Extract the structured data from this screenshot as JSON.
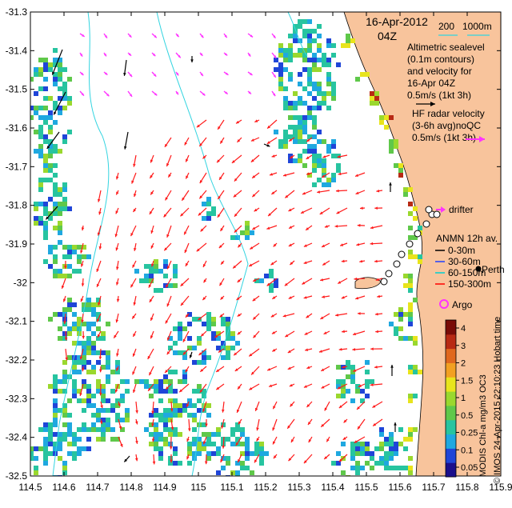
{
  "map": {
    "date_line1": "16-Apr-2012",
    "date_line2": "04Z",
    "bathy_legend": {
      "label_200": "200",
      "label_1000": "1000m"
    },
    "altimetry_text": [
      "Altimetric sealevel",
      "(0.1m contours)",
      "and velocity for",
      "16-Apr 04Z",
      "0.5m/s (1kt 3h)"
    ],
    "hf_radar_text": [
      "HF radar velocity",
      "(3-6h avg)noQC",
      "0.5m/s (1kt 3h)"
    ],
    "drifter_label": "drifter",
    "anmn_text": [
      "ANMN 12h av.",
      "0-30m",
      "30-60m",
      "60-150m",
      "150-300m"
    ],
    "city_label": "Perth",
    "argo_label": "Argo",
    "colorbar_ticks": [
      "4",
      "3",
      "2",
      "1.5",
      "1",
      "0.5",
      "0.25",
      "0.1",
      "0.05"
    ],
    "colorbar_title": "MODIS Chl-a mg/m3 OC3",
    "credit": "© IMOS 24-Apr-2015 22:10:23 Hobart time",
    "x_ticks": [
      "114.5",
      "114.6",
      "114.7",
      "114.8",
      "114.9",
      "115",
      "115.1",
      "115.2",
      "115.3",
      "115.4",
      "115.5",
      "115.6",
      "115.7",
      "115.8",
      "115.9"
    ],
    "y_ticks": [
      "-31.3",
      "-31.4",
      "-31.5",
      "-31.6",
      "-31.7",
      "-31.8",
      "-31.9",
      "-32",
      "-32.1",
      "-32.2",
      "-32.3",
      "-32.4",
      "-32.5"
    ],
    "extent": {
      "lon": [
        114.5,
        115.9
      ],
      "lat": [
        -32.5,
        -31.3
      ]
    },
    "colors": {
      "land": "#f8c49c",
      "bathy_contour": "#33d4e0",
      "hf_arrow": "#ff1a1a",
      "alt_arrow": "#ff33ff",
      "ship_arrow": "#000000",
      "anmn_0_30": "#000000",
      "anmn_30_60": "#1f3fff",
      "anmn_60_150": "#00d0d0",
      "anmn_150_300": "#ff0000",
      "argo": "#ff33ff",
      "colorbar": [
        "#1a0f8c",
        "#1f45d8",
        "#1fa8e0",
        "#27c4a0",
        "#5fc84a",
        "#9ad82e",
        "#e8e41c",
        "#f2a021",
        "#e0681e",
        "#b82a14",
        "#7a0c08"
      ]
    }
  }
}
